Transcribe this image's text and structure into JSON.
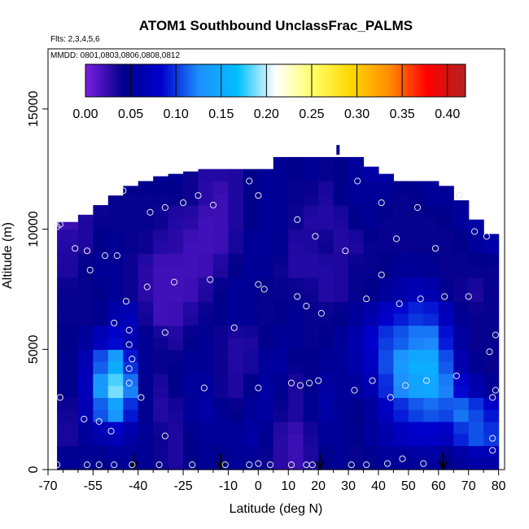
{
  "chart_data": {
    "type": "heatmap",
    "title": "ATOM1 Southbound UnclassFrac_PALMS",
    "subtitle_flights": "Flts: 2,3,4,5,6",
    "subtitle_dates": "MMDD: 0801,0803,0806,0808,0812",
    "xlabel": "Latitude (deg N)",
    "ylabel": "Altitude (m)",
    "xlim": [
      -70,
      82
    ],
    "ylim": [
      0,
      17500
    ],
    "xticks": [
      -70,
      -55,
      -40,
      -25,
      -10,
      0,
      10,
      20,
      30,
      40,
      50,
      60,
      70,
      80
    ],
    "xtick_labels": [
      "-70",
      "-55",
      "-40",
      "-25",
      "-10",
      "0",
      "10",
      "20",
      "30",
      "40",
      "50",
      "60",
      "70",
      "80"
    ],
    "yticks": [
      0,
      5000,
      10000,
      15000
    ],
    "ytick_labels": [
      "0",
      "5000",
      "10000",
      "15000"
    ],
    "colorbar": {
      "min": 0.0,
      "max": 0.42,
      "ticks": [
        0.0,
        0.05,
        0.1,
        0.15,
        0.2,
        0.25,
        0.3,
        0.35,
        0.4
      ],
      "tick_labels": [
        "0.00",
        "0.05",
        "0.10",
        "0.15",
        "0.20",
        "0.25",
        "0.30",
        "0.35",
        "0.40"
      ],
      "colors": [
        "#7b1fe0",
        "#00008b",
        "#0000cd",
        "#1e90ff",
        "#00bfff",
        "#ffffff",
        "#ffff66",
        "#ffd700",
        "#ff8c00",
        "#ff0000",
        "#b22222"
      ]
    },
    "field_bounds": {
      "lat_edges": [
        -67,
        -60,
        -55,
        -50,
        -45,
        -40,
        -35,
        -30,
        -25,
        -20,
        -15,
        -10,
        -5,
        0,
        5,
        10,
        15,
        20,
        25,
        30,
        35,
        40,
        45,
        50,
        55,
        60,
        65,
        70,
        75,
        80
      ],
      "top_alt": [
        10300,
        10600,
        11000,
        11400,
        11800,
        12000,
        12200,
        12300,
        12400,
        12500,
        12500,
        12500,
        12500,
        12500,
        13000,
        13000,
        13000,
        13000,
        13000,
        13000,
        12600,
        12300,
        12000,
        12000,
        12000,
        11800,
        11200,
        10400,
        9800
      ]
    },
    "field_values": [
      [
        0.05,
        0.05,
        0.04,
        0.05,
        0.05,
        0.05,
        0.04,
        0.03,
        0.04,
        0.05,
        0.04,
        0.05,
        0.05,
        0.04,
        0.03,
        0.02,
        0.03,
        0.04,
        0.05,
        0.04,
        0.04,
        0.05,
        0.05,
        0.05,
        0.06,
        0.04,
        0.05,
        0.06,
        0.06
      ],
      [
        0.03,
        0.05,
        0.06,
        0.07,
        0.06,
        0.05,
        0.04,
        0.03,
        0.04,
        0.05,
        0.05,
        0.05,
        0.06,
        0.05,
        0.03,
        0.02,
        0.03,
        0.05,
        0.05,
        0.04,
        0.05,
        0.06,
        0.07,
        0.08,
        0.08,
        0.07,
        0.09,
        0.11,
        0.1
      ],
      [
        0.03,
        0.06,
        0.1,
        0.14,
        0.1,
        0.05,
        0.03,
        0.03,
        0.05,
        0.06,
        0.05,
        0.04,
        0.05,
        0.06,
        0.04,
        0.03,
        0.04,
        0.06,
        0.05,
        0.04,
        0.05,
        0.07,
        0.09,
        0.1,
        0.11,
        0.1,
        0.12,
        0.11,
        0.09
      ],
      [
        0.04,
        0.06,
        0.12,
        0.2,
        0.14,
        0.05,
        0.03,
        0.04,
        0.05,
        0.06,
        0.04,
        0.03,
        0.04,
        0.06,
        0.05,
        0.03,
        0.04,
        0.06,
        0.05,
        0.05,
        0.06,
        0.09,
        0.12,
        0.14,
        0.15,
        0.13,
        0.09,
        0.07,
        0.05
      ],
      [
        0.04,
        0.06,
        0.1,
        0.16,
        0.11,
        0.05,
        0.04,
        0.04,
        0.05,
        0.05,
        0.04,
        0.03,
        0.03,
        0.05,
        0.06,
        0.04,
        0.04,
        0.05,
        0.05,
        0.06,
        0.07,
        0.1,
        0.13,
        0.15,
        0.16,
        0.12,
        0.07,
        0.05,
        0.04
      ],
      [
        0.04,
        0.05,
        0.07,
        0.09,
        0.07,
        0.05,
        0.04,
        0.03,
        0.04,
        0.05,
        0.04,
        0.03,
        0.03,
        0.04,
        0.05,
        0.05,
        0.04,
        0.04,
        0.05,
        0.06,
        0.08,
        0.1,
        0.11,
        0.12,
        0.13,
        0.1,
        0.06,
        0.04,
        0.04
      ],
      [
        0.04,
        0.04,
        0.04,
        0.06,
        0.08,
        0.04,
        0.02,
        0.02,
        0.03,
        0.04,
        0.04,
        0.05,
        0.05,
        0.04,
        0.04,
        0.05,
        0.04,
        0.04,
        0.04,
        0.05,
        0.06,
        0.08,
        0.09,
        0.1,
        0.1,
        0.08,
        0.05,
        0.04,
        0.04
      ],
      [
        0.04,
        0.04,
        0.04,
        0.05,
        0.04,
        0.03,
        0.02,
        0.02,
        0.02,
        0.03,
        0.04,
        0.05,
        0.05,
        0.04,
        0.04,
        0.04,
        0.04,
        0.03,
        0.03,
        0.04,
        0.04,
        0.05,
        0.06,
        0.07,
        0.07,
        0.05,
        0.04,
        0.03,
        0.04
      ],
      [
        0.03,
        0.04,
        0.05,
        0.05,
        0.04,
        0.03,
        0.02,
        0.02,
        0.02,
        0.02,
        0.03,
        0.04,
        0.05,
        0.05,
        0.04,
        0.03,
        0.03,
        0.03,
        0.03,
        0.04,
        0.04,
        0.04,
        0.05,
        0.05,
        0.05,
        0.04,
        0.04,
        0.04,
        0.04
      ],
      [
        0.03,
        0.03,
        0.04,
        0.05,
        0.04,
        0.04,
        0.03,
        0.03,
        0.02,
        0.02,
        0.02,
        0.03,
        0.05,
        0.05,
        0.05,
        0.03,
        0.03,
        0.04,
        0.03,
        0.03,
        0.04,
        0.04,
        0.04,
        0.04,
        0.04,
        0.04,
        0.04,
        0.05,
        0.06
      ],
      [
        0.02,
        0.03,
        0.04,
        0.04,
        0.04,
        0.04,
        0.04,
        0.03,
        0.03,
        0.02,
        0.02,
        0.03,
        0.04,
        0.05,
        0.05,
        0.04,
        0.03,
        0.03,
        0.03,
        0.04,
        0.05,
        0.04,
        0.04,
        0.04,
        0.04,
        0.04,
        0.05,
        0.06,
        0.06
      ],
      [
        0.02,
        0.02,
        0.03,
        0.04,
        0.04,
        0.04,
        0.04,
        0.04,
        0.04,
        0.03,
        0.02,
        0.03,
        0.04,
        0.05,
        0.05,
        0.04,
        0.04,
        0.03,
        0.04,
        0.05,
        0.05,
        0.05,
        0.04,
        0.04,
        0.05,
        0.05,
        0.05,
        0.05,
        0.05
      ],
      [
        0.03,
        0.03,
        0.03,
        0.04,
        0.05,
        0.05,
        0.05,
        0.05,
        0.04,
        0.03,
        0.03,
        0.03,
        0.04,
        0.05,
        0.05,
        0.04,
        0.05,
        0.04,
        0.04,
        0.05,
        0.06,
        0.06,
        0.05,
        0.05,
        0.05,
        0.05,
        0.05,
        0.05,
        0.05
      ]
    ],
    "observation_points": [
      [
        -67,
        200
      ],
      [
        -57,
        200
      ],
      [
        -53,
        200
      ],
      [
        -48,
        200
      ],
      [
        -42,
        200
      ],
      [
        -33,
        200
      ],
      [
        -22,
        200
      ],
      [
        -11,
        200
      ],
      [
        -3,
        200
      ],
      [
        0,
        250
      ],
      [
        4,
        200
      ],
      [
        11,
        200
      ],
      [
        16,
        200
      ],
      [
        18,
        200
      ],
      [
        31,
        200
      ],
      [
        36,
        200
      ],
      [
        43,
        250
      ],
      [
        48,
        450
      ],
      [
        55,
        250
      ],
      [
        78,
        800
      ],
      [
        -66,
        3000
      ],
      [
        -58,
        2100
      ],
      [
        -53,
        2000
      ],
      [
        -49,
        1600
      ],
      [
        -39,
        3000
      ],
      [
        -31,
        1400
      ],
      [
        -18,
        3400
      ],
      [
        0,
        3400
      ],
      [
        11,
        3600
      ],
      [
        14,
        3500
      ],
      [
        17,
        3600
      ],
      [
        20,
        3700
      ],
      [
        32,
        3300
      ],
      [
        38,
        3700
      ],
      [
        44,
        3000
      ],
      [
        49,
        3500
      ],
      [
        56,
        3700
      ],
      [
        66,
        3900
      ],
      [
        78,
        3000
      ],
      [
        79,
        3300
      ],
      [
        78,
        1300
      ],
      [
        -43,
        3600
      ],
      [
        -43,
        4200
      ],
      [
        -43,
        5200
      ],
      [
        -43,
        5800
      ],
      [
        -42,
        4600
      ],
      [
        -44,
        7000
      ],
      [
        -48,
        6100
      ],
      [
        -31,
        5700
      ],
      [
        -8,
        5900
      ],
      [
        -37,
        7600
      ],
      [
        -28,
        7800
      ],
      [
        -16,
        7900
      ],
      [
        0,
        7700
      ],
      [
        2,
        7500
      ],
      [
        13,
        7200
      ],
      [
        16,
        6800
      ],
      [
        21,
        6500
      ],
      [
        36,
        7100
      ],
      [
        41,
        8100
      ],
      [
        47,
        6900
      ],
      [
        54,
        7100
      ],
      [
        62,
        7200
      ],
      [
        70,
        7200
      ],
      [
        77,
        4900
      ],
      [
        79,
        5600
      ],
      [
        -61,
        9200
      ],
      [
        -57,
        9100
      ],
      [
        -51,
        8900
      ],
      [
        -47,
        8900
      ],
      [
        -56,
        8300
      ],
      [
        -66,
        10200
      ],
      [
        -67,
        10100
      ],
      [
        -36,
        10700
      ],
      [
        -31,
        10900
      ],
      [
        -25,
        11100
      ],
      [
        -20,
        11400
      ],
      [
        -15,
        11000
      ],
      [
        -45,
        11600
      ],
      [
        -3,
        12000
      ],
      [
        0,
        11400
      ],
      [
        13,
        10400
      ],
      [
        19,
        9700
      ],
      [
        29,
        9100
      ],
      [
        33,
        12000
      ],
      [
        41,
        11100
      ],
      [
        46,
        9600
      ],
      [
        53,
        10900
      ],
      [
        59,
        9200
      ],
      [
        67,
        11400
      ],
      [
        72,
        9900
      ],
      [
        76,
        9700
      ]
    ],
    "flight_arrows_lat": [
      -41.5,
      -12.5,
      20.5,
      61.5
    ]
  }
}
